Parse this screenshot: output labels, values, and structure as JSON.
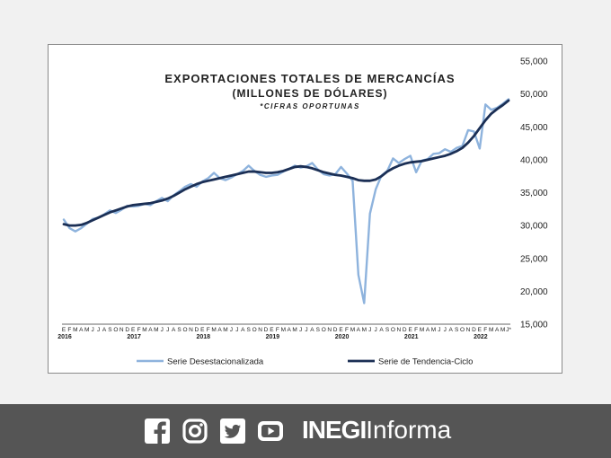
{
  "chart_data": {
    "type": "line",
    "title": "Exportaciones Totales de Mercancías",
    "subtitle": "(Millones de dólares)",
    "note": "*cifras oportunas",
    "title_display": "EXPORTACIONES TOTALES DE MERCANCÍAS",
    "subtitle_display": "(MILLONES DE DÓLARES)",
    "note_display": "*CIFRAS OPORTUNAS",
    "ylim": [
      15000,
      55000
    ],
    "yticks": [
      "15,000",
      "20,000",
      "25,000",
      "30,000",
      "35,000",
      "40,000",
      "45,000",
      "50,000",
      "55,000"
    ],
    "yaxis_position": "right",
    "grid": false,
    "legend_position": "bottom",
    "month_labels": [
      "E",
      "F",
      "M",
      "A",
      "M",
      "J",
      "J",
      "A",
      "S",
      "O",
      "N",
      "D",
      "E",
      "F",
      "M",
      "A",
      "M",
      "J",
      "J",
      "A",
      "S",
      "O",
      "N",
      "D",
      "E",
      "F",
      "M",
      "A",
      "M",
      "J",
      "J",
      "A",
      "S",
      "O",
      "N",
      "D",
      "E",
      "F",
      "M",
      "A",
      "M",
      "J",
      "J",
      "A",
      "S",
      "O",
      "N",
      "D",
      "E",
      "F",
      "M",
      "A",
      "M",
      "J",
      "J",
      "A",
      "S",
      "O",
      "N",
      "D",
      "E",
      "F",
      "M",
      "A",
      "M",
      "J",
      "J",
      "A",
      "S",
      "O",
      "N",
      "D",
      "E",
      "F",
      "M",
      "A",
      "M",
      "J*"
    ],
    "years": [
      {
        "label": "2016",
        "index": 0
      },
      {
        "label": "2017",
        "index": 12
      },
      {
        "label": "2018",
        "index": 24
      },
      {
        "label": "2019",
        "index": 36
      },
      {
        "label": "2020",
        "index": 48
      },
      {
        "label": "2021",
        "index": 60
      },
      {
        "label": "2022",
        "index": 72
      }
    ],
    "series": [
      {
        "name": "Serie Desestacionalizada",
        "color": "#8eb3dd",
        "values": [
          30900,
          29600,
          29100,
          29600,
          30300,
          31000,
          31200,
          31700,
          32300,
          31900,
          32400,
          33000,
          32900,
          33000,
          33300,
          33100,
          33700,
          34200,
          33700,
          34600,
          35200,
          35900,
          36300,
          35900,
          36700,
          37200,
          38000,
          37200,
          36900,
          37300,
          37800,
          38300,
          39100,
          38300,
          37700,
          37400,
          37600,
          37700,
          38200,
          38600,
          39100,
          38800,
          39000,
          39500,
          38500,
          37800,
          37600,
          37800,
          38900,
          37900,
          36800,
          22500,
          18200,
          31800,
          35500,
          37600,
          38300,
          40200,
          39500,
          40100,
          40600,
          38100,
          39900,
          40100,
          40900,
          41000,
          41600,
          41200,
          41800,
          42100,
          44500,
          44300,
          41700,
          48400,
          47600,
          47900,
          48500,
          49200
        ]
      },
      {
        "name": "Serie de Tendencia-Ciclo",
        "color": "#1b2f55",
        "values": [
          30200,
          30000,
          30000,
          30100,
          30400,
          30800,
          31200,
          31600,
          32000,
          32300,
          32600,
          32900,
          33100,
          33200,
          33300,
          33400,
          33600,
          33800,
          34100,
          34500,
          35000,
          35500,
          35900,
          36300,
          36600,
          36800,
          37000,
          37200,
          37400,
          37600,
          37800,
          38000,
          38200,
          38200,
          38100,
          38000,
          38000,
          38100,
          38300,
          38600,
          38900,
          39000,
          38900,
          38700,
          38400,
          38100,
          37900,
          37700,
          37600,
          37400,
          37200,
          36900,
          36800,
          36800,
          37000,
          37500,
          38200,
          38700,
          39100,
          39400,
          39600,
          39700,
          39800,
          40000,
          40200,
          40400,
          40600,
          40900,
          41300,
          41800,
          42600,
          43600,
          44800,
          46000,
          47000,
          47700,
          48300,
          49000
        ]
      }
    ]
  },
  "footer": {
    "social_icons": [
      "facebook-icon",
      "instagram-icon",
      "twitter-icon",
      "youtube-icon"
    ],
    "brand_bold": "INEGI",
    "brand_light": "Informa",
    "background_color": "#555555"
  }
}
